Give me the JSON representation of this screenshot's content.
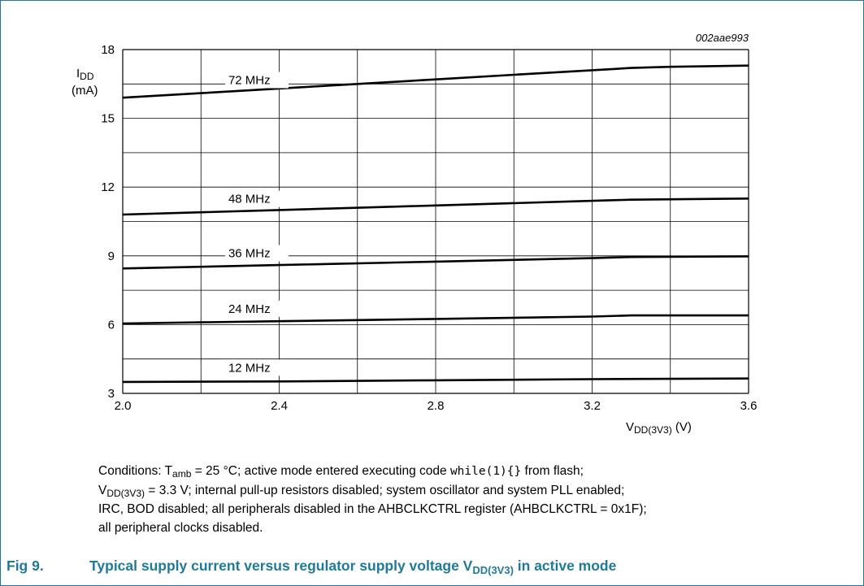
{
  "figure_id": "002aae993",
  "y_axis_title": {
    "symbol": "I",
    "subscript": "DD",
    "unit": "(mA)"
  },
  "x_axis_title": {
    "symbol": "V",
    "subscript": "DD(3V3)",
    "unit": "(V)"
  },
  "chart_data": {
    "type": "line",
    "x_ticks": [
      "2.0",
      "2.4",
      "2.8",
      "3.2",
      "3.6"
    ],
    "y_ticks": [
      "3",
      "6",
      "9",
      "12",
      "15",
      "18"
    ],
    "xlim": [
      2.0,
      3.6
    ],
    "ylim": [
      3,
      18
    ],
    "grid": true,
    "x_grid_step": 0.2,
    "y_grid_step": 1.5,
    "series": [
      {
        "name": "72 MHz",
        "x": [
          2.0,
          2.2,
          2.4,
          2.6,
          2.8,
          3.0,
          3.2,
          3.3,
          3.4,
          3.6
        ],
        "y": [
          15.9,
          16.1,
          16.3,
          16.5,
          16.7,
          16.9,
          17.1,
          17.2,
          17.25,
          17.3
        ]
      },
      {
        "name": "48 MHz",
        "x": [
          2.0,
          2.4,
          2.8,
          3.2,
          3.3,
          3.6
        ],
        "y": [
          10.8,
          11.0,
          11.2,
          11.4,
          11.45,
          11.5
        ]
      },
      {
        "name": "36 MHz",
        "x": [
          2.0,
          2.4,
          2.8,
          3.2,
          3.3,
          3.6
        ],
        "y": [
          8.45,
          8.6,
          8.75,
          8.9,
          8.95,
          8.98
        ]
      },
      {
        "name": "24 MHz",
        "x": [
          2.0,
          2.4,
          2.8,
          3.2,
          3.3,
          3.6
        ],
        "y": [
          6.05,
          6.15,
          6.25,
          6.35,
          6.4,
          6.4
        ]
      },
      {
        "name": "12 MHz",
        "x": [
          2.0,
          2.4,
          2.8,
          3.2,
          3.6
        ],
        "y": [
          3.5,
          3.52,
          3.57,
          3.62,
          3.65
        ]
      }
    ]
  },
  "conditions": {
    "l1_a": "Conditions: T",
    "l1_sub": "amb",
    "l1_b": " = 25 °C; active mode entered executing code ",
    "l1_code": "while(1){}",
    "l1_c": " from flash;",
    "l2_a": "V",
    "l2_sub": "DD(3V3)",
    "l2_b": " = 3.3 V; internal pull-up resistors disabled; system oscillator and system PLL enabled;",
    "l3": "IRC, BOD disabled; all peripherals disabled in the AHBCLKCTRL register (AHBCLKCTRL = 0x1F);",
    "l4": "all peripheral clocks disabled."
  },
  "caption": {
    "fig_label": "Fig 9.",
    "text_a": "Typical supply current versus regulator supply voltage V",
    "text_sub": "DD(3V3)",
    "text_b": " in active mode"
  },
  "colors": {
    "caption": "#1f7a9a",
    "frame": "#1f7a9a",
    "grid": "#000000",
    "line": "#000000"
  }
}
